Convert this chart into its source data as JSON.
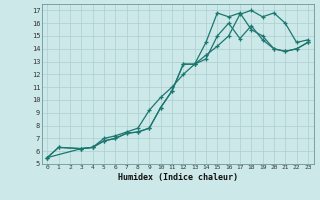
{
  "bg_color": "#cce8e8",
  "grid_color": "#aacfcf",
  "line_color": "#1a7870",
  "xlabel": "Humidex (Indice chaleur)",
  "xlim": [
    -0.5,
    23.5
  ],
  "ylim": [
    5,
    17.5
  ],
  "xticks": [
    0,
    1,
    2,
    3,
    4,
    5,
    6,
    7,
    8,
    9,
    10,
    11,
    12,
    13,
    14,
    15,
    16,
    17,
    18,
    19,
    20,
    21,
    22,
    23
  ],
  "yticks": [
    5,
    6,
    7,
    8,
    9,
    10,
    11,
    12,
    13,
    14,
    15,
    16,
    17
  ],
  "line1_x": [
    0,
    1,
    3,
    4,
    5,
    6,
    7,
    8,
    9,
    10,
    11,
    12,
    13,
    14,
    15,
    16,
    17,
    18,
    19,
    20,
    21,
    22,
    23
  ],
  "line1_y": [
    5.5,
    6.3,
    6.2,
    6.3,
    6.8,
    7.0,
    7.4,
    7.5,
    7.8,
    9.4,
    10.7,
    12.8,
    12.8,
    14.5,
    16.8,
    16.5,
    16.8,
    15.5,
    15.0,
    14.0,
    13.8,
    14.0,
    14.5
  ],
  "line2_x": [
    0,
    1,
    3,
    4,
    5,
    6,
    7,
    8,
    9,
    10,
    11,
    12,
    13,
    14,
    15,
    16,
    17,
    18,
    19,
    20,
    21,
    22,
    23
  ],
  "line2_y": [
    5.5,
    6.3,
    6.2,
    6.3,
    6.8,
    7.0,
    7.4,
    7.5,
    7.8,
    9.4,
    10.7,
    12.8,
    12.8,
    13.2,
    15.0,
    16.0,
    14.8,
    15.8,
    14.7,
    14.0,
    13.8,
    14.0,
    14.5
  ],
  "line3_x": [
    0,
    3,
    4,
    5,
    6,
    7,
    8,
    9,
    10,
    11,
    12,
    13,
    14,
    15,
    16,
    17,
    18,
    19,
    20,
    21,
    22,
    23
  ],
  "line3_y": [
    5.5,
    6.2,
    6.3,
    7.0,
    7.2,
    7.5,
    7.8,
    9.2,
    10.2,
    11.0,
    12.0,
    12.8,
    13.5,
    14.2,
    15.0,
    16.7,
    17.0,
    16.5,
    16.8,
    16.0,
    14.5,
    14.7
  ]
}
